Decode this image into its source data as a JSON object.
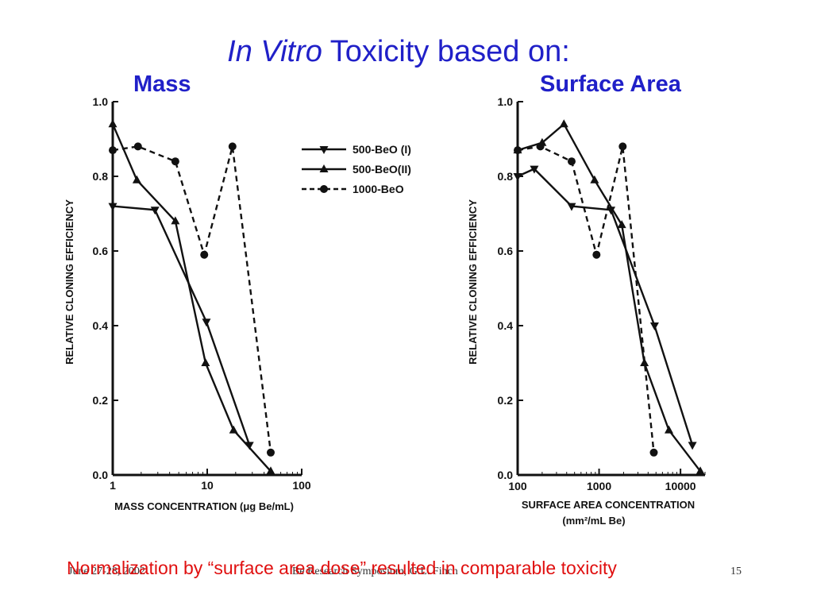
{
  "slide": {
    "title_italic": "In Vitro",
    "title_rest": " Toxicity based on:",
    "left_label": "Mass",
    "right_label": "Surface Area",
    "conclusion": "Normalization by “surface area dose” resulted in comparable toxicity",
    "footer_date": "June 27-28, 2002",
    "footer_event": "Be Research Symposium, G.L. Finch",
    "footer_page": "15"
  },
  "legend": {
    "s1": "500-BeO (I)",
    "s2": "500-BeO(II)",
    "s3": "1000-BeO"
  },
  "chart_data": [
    {
      "type": "line",
      "xscale": "log",
      "xlim": [
        1,
        100
      ],
      "ylim": [
        0,
        1.0
      ],
      "xticks": [
        "1",
        "10",
        "100"
      ],
      "yticks": [
        "0.0",
        "0.2",
        "0.4",
        "0.6",
        "0.8",
        "1.0"
      ],
      "xlabel": "MASS CONCENTRATION (μg Be/mL)",
      "ylabel": "RELATIVE CLONING EFFICIENCY",
      "series": [
        {
          "name": "500-BeO (I)",
          "marker": "triangle-down",
          "dash": "solid",
          "x": [
            1,
            2.8,
            9.8,
            28
          ],
          "y": [
            0.72,
            0.71,
            0.41,
            0.08
          ]
        },
        {
          "name": "500-BeO(II)",
          "marker": "triangle-up",
          "dash": "solid",
          "x": [
            1,
            1.8,
            4.6,
            9.6,
            19,
            47
          ],
          "y": [
            0.94,
            0.79,
            0.68,
            0.3,
            0.12,
            0.01
          ]
        },
        {
          "name": "1000-BeO",
          "marker": "circle",
          "dash": "dashed",
          "x": [
            1,
            1.85,
            4.6,
            9.3,
            18.5,
            47
          ],
          "y": [
            0.87,
            0.88,
            0.84,
            0.59,
            0.88,
            0.06
          ]
        }
      ]
    },
    {
      "type": "line",
      "xscale": "log",
      "xlim": [
        100,
        20000
      ],
      "ylim": [
        0,
        1.0
      ],
      "xticks": [
        "100",
        "1000",
        "10000"
      ],
      "yticks": [
        "0.0",
        "0.2",
        "0.4",
        "0.6",
        "0.8",
        "1.0"
      ],
      "xlabel": "SURFACE AREA CONCENTRATION",
      "xlabel2": "(mm²/mL Be)",
      "ylabel": "RELATIVE CLONING EFFICIENCY",
      "series": [
        {
          "name": "500-BeO (I)",
          "marker": "triangle-down",
          "dash": "solid",
          "x": [
            100,
            160,
            460,
            1400,
            4800,
            14000
          ],
          "y": [
            0.8,
            0.82,
            0.72,
            0.71,
            0.4,
            0.08
          ]
        },
        {
          "name": "500-BeO(II)",
          "marker": "triangle-up",
          "dash": "solid",
          "x": [
            100,
            200,
            370,
            880,
            1900,
            3600,
            7200,
            17500
          ],
          "y": [
            0.87,
            0.89,
            0.94,
            0.79,
            0.67,
            0.3,
            0.12,
            0.01
          ]
        },
        {
          "name": "1000-BeO",
          "marker": "circle",
          "dash": "dashed",
          "x": [
            100,
            190,
            460,
            930,
            1950,
            4700
          ],
          "y": [
            0.87,
            0.88,
            0.84,
            0.59,
            0.88,
            0.06
          ]
        }
      ]
    }
  ]
}
